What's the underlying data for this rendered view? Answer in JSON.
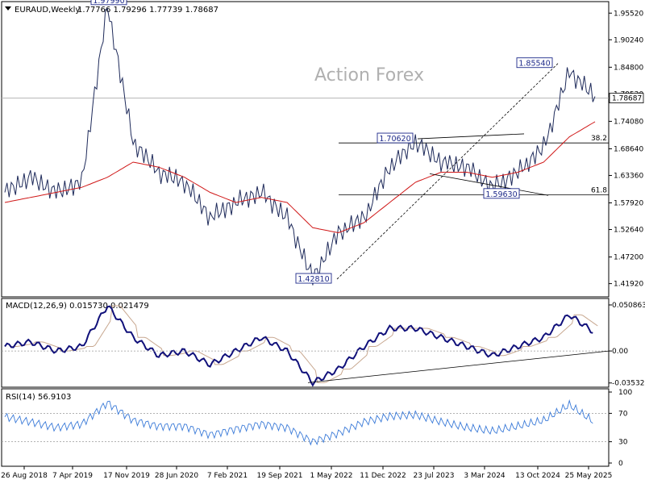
{
  "header": {
    "symbol": "EURAUD,Weekly",
    "ohlc": "1.77766 1.79296 1.77739 1.78687"
  },
  "watermark": "Action Forex",
  "panels": {
    "price": {
      "last_label": "1.78687",
      "y_ticks": [
        "1.95520",
        "1.90240",
        "1.84800",
        "1.79520",
        "1.74080",
        "1.68640",
        "1.63360",
        "1.57920",
        "1.52640",
        "1.47200",
        "1.41920"
      ],
      "annotations": {
        "high": "1.97990",
        "high2": "1.85540",
        "mid": "1.70620",
        "low2": "1.59630",
        "low": "1.42810",
        "fib382": "38.2",
        "fib618": "61.8"
      }
    },
    "macd": {
      "label": "MACD(12,26,9) 0.015730 0.021479",
      "y_ticks": [
        "0.050863",
        "0.00",
        "-0.035322"
      ]
    },
    "rsi": {
      "label": "RSI(14) 56.9103",
      "y_ticks": [
        "100",
        "70",
        "30",
        "0"
      ]
    }
  },
  "x_ticks": [
    "26 Aug 2018",
    "7 Apr 2019",
    "17 Nov 2019",
    "28 Jun 2020",
    "7 Feb 2021",
    "19 Sep 2021",
    "1 May 2022",
    "11 Dec 2022",
    "23 Jul 2023",
    "3 Mar 2024",
    "13 Oct 2024",
    "25 May 2025"
  ],
  "chart_data": {
    "type": "line",
    "title": "EURAUD,Weekly",
    "x": [
      "2018-08",
      "2018-12",
      "2019-04",
      "2019-08",
      "2019-11",
      "2020-01",
      "2020-06",
      "2020-10",
      "2021-02",
      "2021-06",
      "2021-09",
      "2021-12",
      "2022-05",
      "2022-08",
      "2022-12",
      "2023-04",
      "2023-07",
      "2023-11",
      "2024-03",
      "2024-07",
      "2024-10",
      "2025-01",
      "2025-05",
      "2025-08"
    ],
    "series": [
      {
        "values": [
          1.6,
          1.63,
          1.6,
          1.62,
          1.97,
          1.7,
          1.64,
          1.62,
          1.55,
          1.58,
          1.6,
          1.55,
          1.43,
          1.52,
          1.55,
          1.65,
          1.7,
          1.66,
          1.65,
          1.61,
          1.64,
          1.69,
          1.84,
          1.79
        ]
      },
      {
        "values": [
          1.58,
          1.59,
          1.6,
          1.61,
          1.63,
          1.66,
          1.65,
          1.63,
          1.6,
          1.58,
          1.59,
          1.58,
          1.53,
          1.52,
          1.54,
          1.58,
          1.62,
          1.64,
          1.64,
          1.63,
          1.64,
          1.66,
          1.71,
          1.74
        ]
      },
      {
        "values": [
          0.005,
          0.01,
          0.0,
          0.005,
          0.05,
          0.015,
          -0.005,
          0.0,
          -0.015,
          0.0,
          0.015,
          0.0,
          -0.035,
          -0.02,
          0.005,
          0.025,
          0.025,
          0.015,
          0.005,
          -0.005,
          0.005,
          0.015,
          0.04,
          0.02
        ]
      },
      {
        "values": [
          65,
          58,
          50,
          55,
          85,
          60,
          52,
          52,
          40,
          48,
          55,
          50,
          30,
          42,
          58,
          66,
          68,
          58,
          50,
          45,
          52,
          60,
          82,
          57
        ]
      }
    ],
    "ylim": [
      1.393,
      1.978
    ],
    "levels": {
      "fib382": 1.698,
      "fib618": 1.595,
      "last": 1.78687,
      "high": 1.9799,
      "high2": 1.8554,
      "mid": 1.7062,
      "low2": 1.5963,
      "low": 1.4281
    }
  }
}
